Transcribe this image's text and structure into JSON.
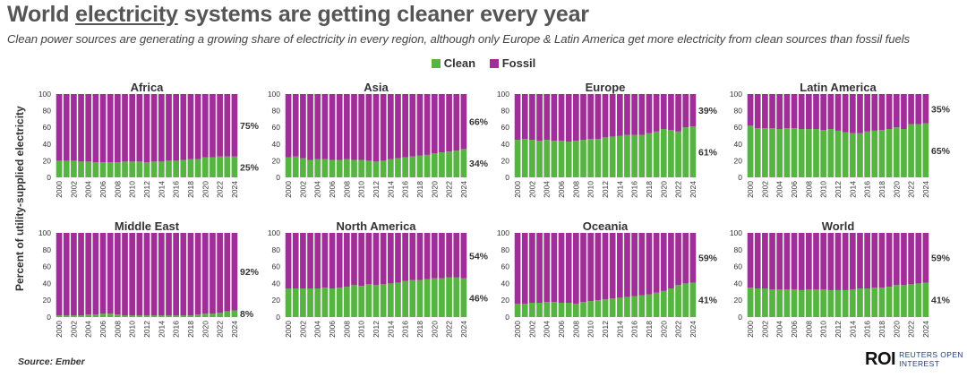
{
  "header": {
    "title_pre": "World ",
    "title_ul": "electricity",
    "title_post": " systems are getting cleaner every year",
    "subtitle": "Clean power sources are generating a growing share of electricity in every region, although only Europe & Latin America get more electricity from clean sources than fossil fuels"
  },
  "legend": {
    "clean": "Clean",
    "fossil": "Fossil"
  },
  "colors": {
    "clean": "#56b440",
    "fossil": "#a12d98"
  },
  "y_axis_label": "Percent of utility-supplied electricity",
  "source": "Source:  Ember",
  "logo": {
    "mark": "ROI",
    "line1": "REUTERS OPEN",
    "line2": "INTEREST"
  },
  "chart_data": [
    {
      "type": "bar",
      "title": "Africa",
      "stacked": true,
      "ylim": [
        0,
        100
      ],
      "yticks": [
        "0",
        "20",
        "40",
        "60",
        "80",
        "100"
      ],
      "categories": [
        "2000",
        "2001",
        "2002",
        "2003",
        "2004",
        "2005",
        "2006",
        "2007",
        "2008",
        "2009",
        "2010",
        "2011",
        "2012",
        "2013",
        "2014",
        "2015",
        "2016",
        "2017",
        "2018",
        "2019",
        "2020",
        "2021",
        "2022",
        "2023",
        "2024"
      ],
      "series": [
        {
          "name": "Clean",
          "values": [
            20,
            20,
            20,
            19,
            19,
            18,
            18,
            18,
            18,
            19,
            19,
            19,
            18,
            19,
            19,
            20,
            20,
            21,
            22,
            22,
            24,
            24,
            25,
            25,
            25
          ]
        },
        {
          "name": "Fossil",
          "values": [
            80,
            80,
            80,
            81,
            81,
            82,
            82,
            82,
            82,
            81,
            81,
            81,
            82,
            81,
            81,
            80,
            80,
            79,
            78,
            78,
            76,
            76,
            75,
            75,
            75
          ]
        }
      ],
      "labels": {
        "clean": "25%",
        "fossil": "75%"
      }
    },
    {
      "type": "bar",
      "title": "Asia",
      "stacked": true,
      "ylim": [
        0,
        100
      ],
      "yticks": [
        "0",
        "20",
        "40",
        "60",
        "80",
        "100"
      ],
      "categories": [
        "2000",
        "2001",
        "2002",
        "2003",
        "2004",
        "2005",
        "2006",
        "2007",
        "2008",
        "2009",
        "2010",
        "2011",
        "2012",
        "2013",
        "2014",
        "2015",
        "2016",
        "2017",
        "2018",
        "2019",
        "2020",
        "2021",
        "2022",
        "2023",
        "2024"
      ],
      "series": [
        {
          "name": "Clean",
          "values": [
            24,
            25,
            23,
            21,
            22,
            22,
            21,
            21,
            22,
            21,
            21,
            20,
            19,
            20,
            22,
            23,
            24,
            25,
            26,
            27,
            29,
            30,
            31,
            32,
            34
          ]
        },
        {
          "name": "Fossil",
          "values": [
            76,
            75,
            77,
            79,
            78,
            78,
            79,
            79,
            78,
            79,
            79,
            80,
            81,
            80,
            78,
            77,
            76,
            75,
            74,
            73,
            71,
            70,
            69,
            68,
            66
          ]
        }
      ],
      "labels": {
        "clean": "34%",
        "fossil": "66%"
      }
    },
    {
      "type": "bar",
      "title": "Europe",
      "stacked": true,
      "ylim": [
        0,
        100
      ],
      "yticks": [
        "0",
        "20",
        "40",
        "60",
        "80",
        "100"
      ],
      "categories": [
        "2000",
        "2001",
        "2002",
        "2003",
        "2004",
        "2005",
        "2006",
        "2007",
        "2008",
        "2009",
        "2010",
        "2011",
        "2012",
        "2013",
        "2014",
        "2015",
        "2016",
        "2017",
        "2018",
        "2019",
        "2020",
        "2021",
        "2022",
        "2023",
        "2024"
      ],
      "series": [
        {
          "name": "Clean",
          "values": [
            45,
            46,
            45,
            44,
            45,
            44,
            44,
            43,
            44,
            45,
            46,
            46,
            48,
            49,
            50,
            51,
            51,
            51,
            53,
            55,
            58,
            57,
            55,
            60,
            61
          ]
        },
        {
          "name": "Fossil",
          "values": [
            55,
            54,
            55,
            56,
            55,
            56,
            56,
            57,
            56,
            55,
            54,
            54,
            52,
            51,
            50,
            49,
            49,
            49,
            47,
            45,
            42,
            43,
            45,
            40,
            39
          ]
        }
      ],
      "labels": {
        "clean": "61%",
        "fossil": "39%"
      }
    },
    {
      "type": "bar",
      "title": "Latin America",
      "stacked": true,
      "ylim": [
        0,
        100
      ],
      "yticks": [
        "0",
        "20",
        "40",
        "60",
        "80",
        "100"
      ],
      "categories": [
        "2000",
        "2001",
        "2002",
        "2003",
        "2004",
        "2005",
        "2006",
        "2007",
        "2008",
        "2009",
        "2010",
        "2011",
        "2012",
        "2013",
        "2014",
        "2015",
        "2016",
        "2017",
        "2018",
        "2019",
        "2020",
        "2021",
        "2022",
        "2023",
        "2024"
      ],
      "series": [
        {
          "name": "Clean",
          "values": [
            62,
            59,
            59,
            59,
            58,
            59,
            59,
            58,
            58,
            58,
            57,
            58,
            56,
            54,
            53,
            53,
            55,
            56,
            57,
            58,
            60,
            58,
            64,
            64,
            65
          ]
        },
        {
          "name": "Fossil",
          "values": [
            38,
            41,
            41,
            41,
            42,
            41,
            41,
            42,
            42,
            42,
            43,
            42,
            44,
            46,
            47,
            47,
            45,
            44,
            43,
            42,
            40,
            42,
            36,
            36,
            35
          ]
        }
      ],
      "labels": {
        "clean": "65%",
        "fossil": "35%"
      }
    },
    {
      "type": "bar",
      "title": "Middle East",
      "stacked": true,
      "ylim": [
        0,
        100
      ],
      "yticks": [
        "0",
        "20",
        "40",
        "60",
        "80",
        "100"
      ],
      "categories": [
        "2000",
        "2001",
        "2002",
        "2003",
        "2004",
        "2005",
        "2006",
        "2007",
        "2008",
        "2009",
        "2010",
        "2011",
        "2012",
        "2013",
        "2014",
        "2015",
        "2016",
        "2017",
        "2018",
        "2019",
        "2020",
        "2021",
        "2022",
        "2023",
        "2024"
      ],
      "series": [
        {
          "name": "Clean",
          "values": [
            2,
            2,
            2,
            2,
            3,
            3,
            4,
            4,
            3,
            2,
            2,
            2,
            2,
            2,
            2,
            2,
            2,
            2,
            2,
            3,
            4,
            4,
            5,
            7,
            8
          ]
        },
        {
          "name": "Fossil",
          "values": [
            98,
            98,
            98,
            98,
            97,
            97,
            96,
            96,
            97,
            98,
            98,
            98,
            98,
            98,
            98,
            98,
            98,
            98,
            98,
            97,
            96,
            96,
            95,
            93,
            92
          ]
        }
      ],
      "labels": {
        "clean": "8%",
        "fossil": "92%"
      }
    },
    {
      "type": "bar",
      "title": "North America",
      "stacked": true,
      "ylim": [
        0,
        100
      ],
      "yticks": [
        "0",
        "20",
        "40",
        "60",
        "80",
        "100"
      ],
      "categories": [
        "2000",
        "2001",
        "2002",
        "2003",
        "2004",
        "2005",
        "2006",
        "2007",
        "2008",
        "2009",
        "2010",
        "2011",
        "2012",
        "2013",
        "2014",
        "2015",
        "2016",
        "2017",
        "2018",
        "2019",
        "2020",
        "2021",
        "2022",
        "2023",
        "2024"
      ],
      "series": [
        {
          "name": "Clean",
          "values": [
            34,
            34,
            34,
            34,
            34,
            35,
            34,
            35,
            36,
            38,
            37,
            39,
            38,
            39,
            40,
            41,
            43,
            44,
            44,
            45,
            46,
            46,
            47,
            47,
            46
          ]
        },
        {
          "name": "Fossil",
          "values": [
            66,
            66,
            66,
            66,
            66,
            65,
            66,
            65,
            64,
            62,
            63,
            61,
            62,
            61,
            60,
            59,
            57,
            56,
            56,
            55,
            54,
            54,
            53,
            53,
            54
          ]
        }
      ],
      "labels": {
        "clean": "46%",
        "fossil": "54%"
      }
    },
    {
      "type": "bar",
      "title": "Oceania",
      "stacked": true,
      "ylim": [
        0,
        100
      ],
      "yticks": [
        "0",
        "20",
        "40",
        "60",
        "80",
        "100"
      ],
      "categories": [
        "2000",
        "2001",
        "2002",
        "2003",
        "2004",
        "2005",
        "2006",
        "2007",
        "2008",
        "2009",
        "2010",
        "2011",
        "2012",
        "2013",
        "2014",
        "2015",
        "2016",
        "2017",
        "2018",
        "2019",
        "2020",
        "2021",
        "2022",
        "2023",
        "2024"
      ],
      "series": [
        {
          "name": "Clean",
          "values": [
            16,
            16,
            17,
            17,
            18,
            18,
            17,
            17,
            16,
            18,
            19,
            20,
            21,
            22,
            23,
            24,
            25,
            26,
            27,
            29,
            31,
            34,
            38,
            40,
            41
          ]
        },
        {
          "name": "Fossil",
          "values": [
            84,
            84,
            83,
            83,
            82,
            82,
            83,
            83,
            84,
            82,
            81,
            80,
            79,
            78,
            77,
            76,
            75,
            74,
            73,
            71,
            69,
            66,
            62,
            60,
            59
          ]
        }
      ],
      "labels": {
        "clean": "41%",
        "fossil": "59%"
      }
    },
    {
      "type": "bar",
      "title": "World",
      "stacked": true,
      "ylim": [
        0,
        100
      ],
      "yticks": [
        "0",
        "20",
        "40",
        "60",
        "80",
        "100"
      ],
      "categories": [
        "2000",
        "2001",
        "2002",
        "2003",
        "2004",
        "2005",
        "2006",
        "2007",
        "2008",
        "2009",
        "2010",
        "2011",
        "2012",
        "2013",
        "2014",
        "2015",
        "2016",
        "2017",
        "2018",
        "2019",
        "2020",
        "2021",
        "2022",
        "2023",
        "2024"
      ],
      "series": [
        {
          "name": "Clean",
          "values": [
            35,
            34,
            34,
            33,
            33,
            33,
            33,
            32,
            33,
            33,
            33,
            32,
            32,
            32,
            33,
            34,
            34,
            35,
            35,
            36,
            38,
            38,
            39,
            40,
            41
          ]
        },
        {
          "name": "Fossil",
          "values": [
            65,
            66,
            66,
            67,
            67,
            67,
            67,
            68,
            67,
            67,
            67,
            68,
            68,
            68,
            67,
            66,
            66,
            65,
            65,
            64,
            62,
            62,
            61,
            60,
            59
          ]
        }
      ],
      "labels": {
        "clean": "41%",
        "fossil": "59%"
      }
    }
  ]
}
